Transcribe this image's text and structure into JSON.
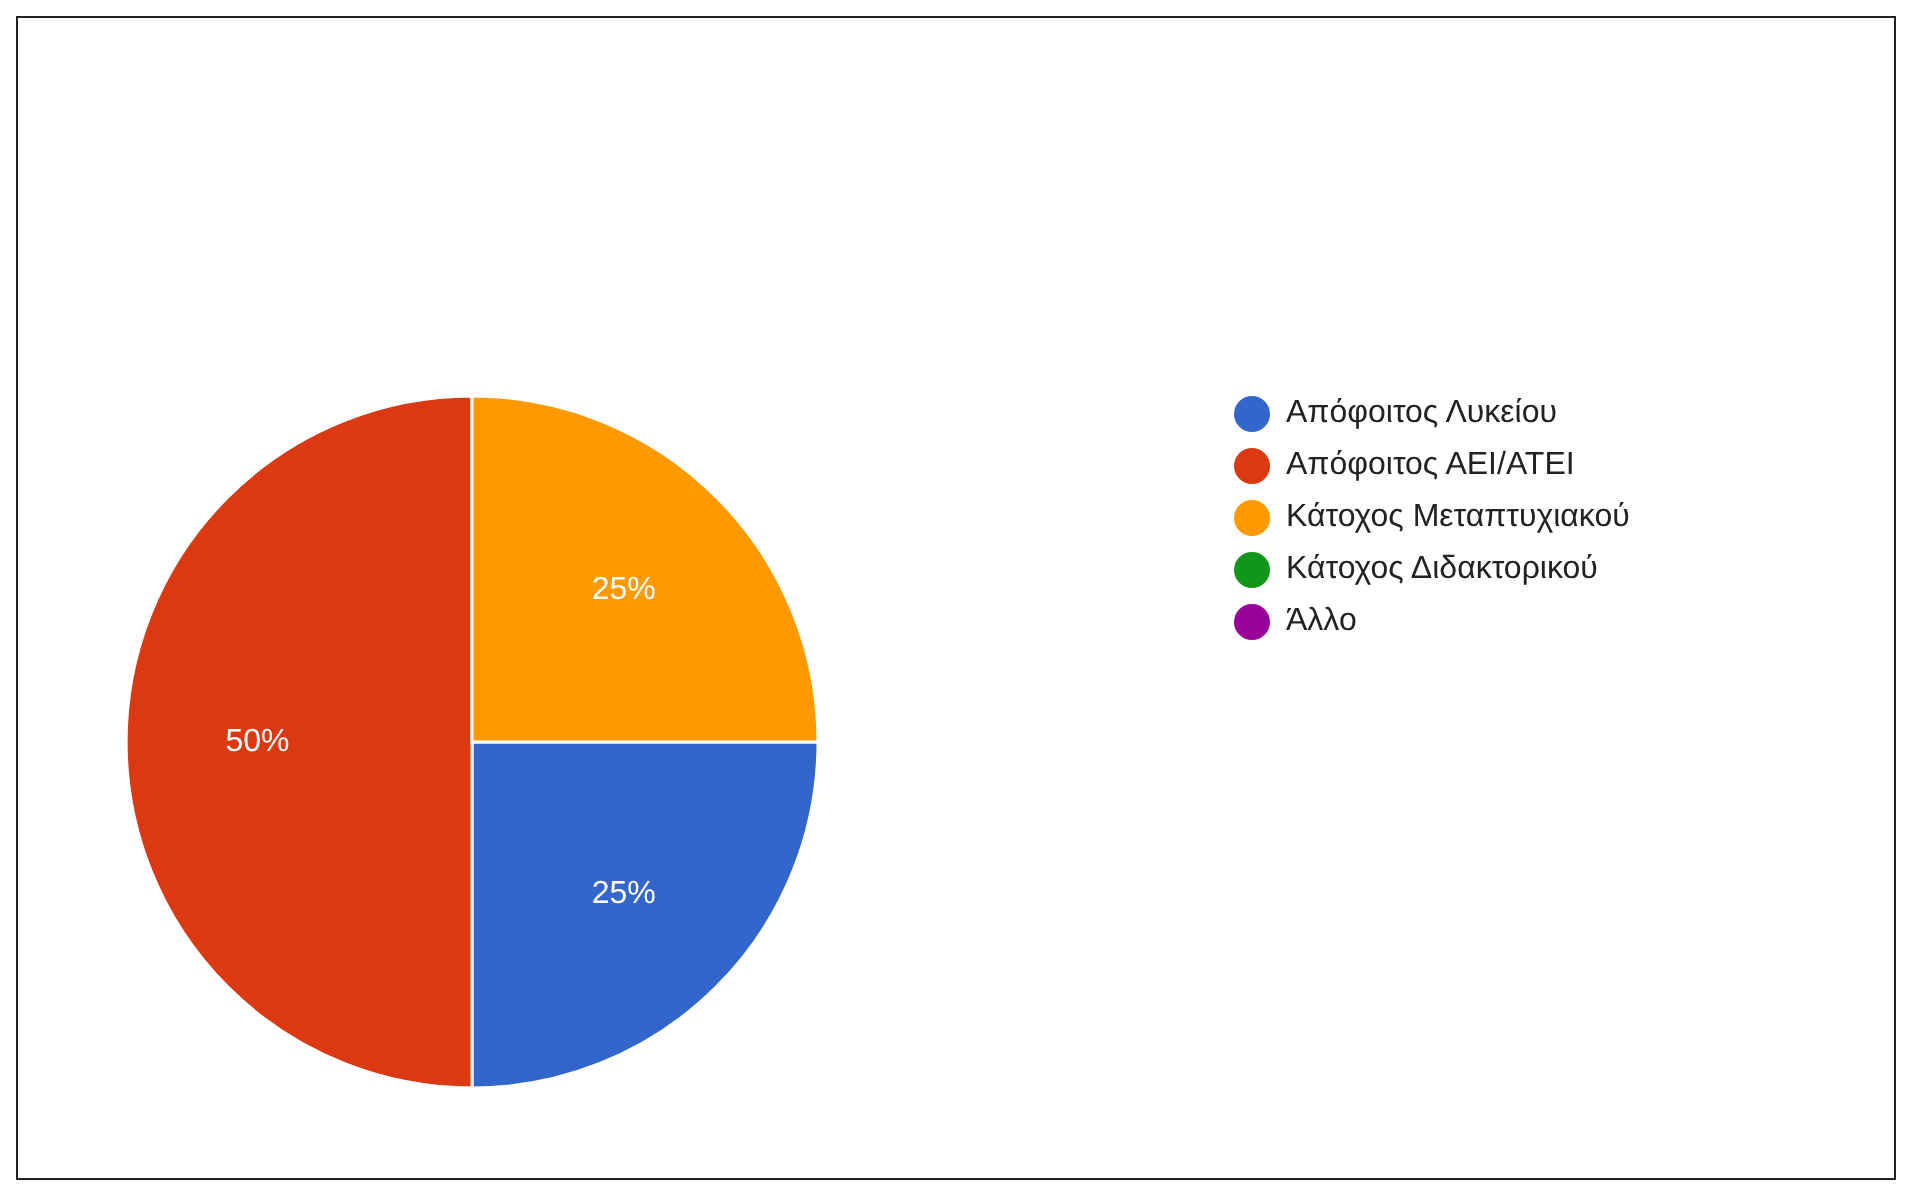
{
  "chart_data": {
    "type": "pie",
    "categories": [
      "Απόφοιτος Λυκείου",
      "Απόφοιτος ΑΕΙ/ΑΤΕΙ",
      "Κάτοχος Μεταπτυχιακού",
      "Κάτοχος Διδακτορικού",
      "Άλλο"
    ],
    "values": [
      25,
      50,
      25,
      0,
      0
    ],
    "colors": [
      "#3366cc",
      "#dc3912",
      "#ff9900",
      "#109618",
      "#990099"
    ],
    "value_labels": [
      "25%",
      "50%",
      "25%",
      null,
      null
    ],
    "legend": "right"
  }
}
